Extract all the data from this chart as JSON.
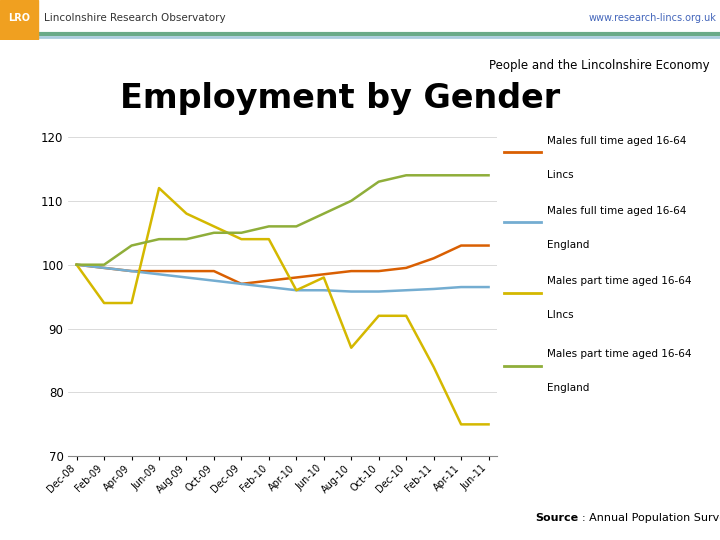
{
  "title": "Employment by Gender",
  "subtitle": "People and the Lincolnshire Economy",
  "header_left": "Lincolnshire Research Observatory",
  "header_right": "www.research-lincs.org.uk",
  "source_bold": "Source",
  "source_rest": ": Annual Population Survey",
  "x_labels": [
    "Dec-08",
    "Feb-09",
    "Apr-09",
    "Jun-09",
    "Aug-09",
    "Oct-09",
    "Dec-09",
    "Feb-10",
    "Apr-10",
    "Jun-10",
    "Aug-10",
    "Oct-10",
    "Dec-10",
    "Feb-11",
    "Apr-11",
    "Jun-11"
  ],
  "ylim": [
    70,
    122
  ],
  "yticks": [
    70,
    80,
    90,
    100,
    110,
    120
  ],
  "series": [
    {
      "label1": "Males full time aged 16-64",
      "label2": "Lincs",
      "color": "#d95f02",
      "values": [
        100,
        99.5,
        99,
        99,
        99,
        99,
        97,
        97.5,
        98,
        98.5,
        99,
        99,
        99.5,
        101,
        103,
        103
      ]
    },
    {
      "label1": "Males full time aged 16-64",
      "label2": "England",
      "color": "#74add1",
      "values": [
        100,
        99.5,
        99,
        98.5,
        98,
        97.5,
        97,
        96.5,
        96,
        96,
        95.8,
        95.8,
        96,
        96.2,
        96.5,
        96.5
      ]
    },
    {
      "label1": "Males part time aged 16-64",
      "label2": "LIncs",
      "color": "#d4b800",
      "values": [
        100,
        94,
        94,
        112,
        108,
        106,
        104,
        104,
        96,
        98,
        87,
        92,
        92,
        84,
        75,
        75
      ]
    },
    {
      "label1": "Males part time aged 16-64",
      "label2": "England",
      "color": "#8fae3a",
      "values": [
        100,
        100,
        103,
        104,
        104,
        105,
        105,
        106,
        106,
        108,
        110,
        113,
        114,
        114,
        114,
        114
      ]
    }
  ],
  "background_color": "#ffffff",
  "header_bg": "#e8e8d8",
  "teal_line_color": "#6aaa88",
  "blue_line_color": "#aaccdd",
  "logo_color": "#f0a020",
  "logo_text_color": "#ffffff",
  "header_text_color": "#333333",
  "url_color": "#4466bb"
}
